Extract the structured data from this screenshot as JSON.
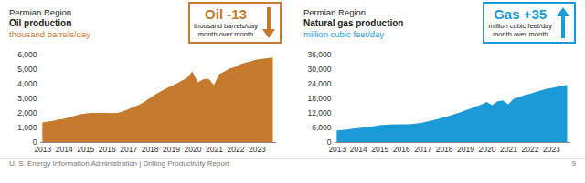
{
  "chart_data": [
    {
      "type": "area",
      "region": "Permian Region",
      "title": "Oil production",
      "y_label": "thousand barrels/day",
      "color": "#c57a2e",
      "x": [
        2013,
        2013.25,
        2013.5,
        2013.75,
        2014,
        2014.25,
        2014.5,
        2014.75,
        2015,
        2015.25,
        2015.5,
        2015.75,
        2016,
        2016.25,
        2016.5,
        2016.75,
        2017,
        2017.25,
        2017.5,
        2017.75,
        2018,
        2018.25,
        2018.5,
        2018.75,
        2019,
        2019.25,
        2019.5,
        2019.75,
        2020,
        2020.25,
        2020.5,
        2020.75,
        2021,
        2021.25,
        2021.5,
        2021.75,
        2022,
        2022.25,
        2022.5,
        2022.75,
        2023,
        2023.25,
        2023.5,
        2023.75
      ],
      "values": [
        1350,
        1400,
        1450,
        1550,
        1600,
        1700,
        1800,
        1900,
        1950,
        2000,
        2000,
        2000,
        2000,
        1980,
        2000,
        2100,
        2250,
        2400,
        2550,
        2750,
        3000,
        3250,
        3450,
        3650,
        3850,
        4000,
        4200,
        4400,
        4850,
        4100,
        4300,
        4350,
        3900,
        4650,
        4850,
        5050,
        5150,
        5350,
        5450,
        5550,
        5650,
        5700,
        5750,
        5800
      ],
      "xlim": [
        2012.9,
        2023.9
      ],
      "xticks": [
        2013,
        2014,
        2015,
        2016,
        2017,
        2018,
        2019,
        2020,
        2021,
        2022,
        2023
      ],
      "ylim": [
        0,
        6000
      ],
      "yticks": [
        0,
        {
          "value": 1000,
          "label": "1,000"
        },
        {
          "value": 2000,
          "label": "2,000"
        },
        {
          "value": 3000,
          "label": "3,000"
        },
        {
          "value": 4000,
          "label": "4,000"
        },
        {
          "value": 5000,
          "label": "5,000"
        },
        {
          "value": 6000,
          "label": "6,000"
        }
      ],
      "annotation": {
        "label": "Oil",
        "value": -13,
        "value_label": "-13",
        "text": [
          "thousand barrels/day",
          "month over month"
        ]
      }
    },
    {
      "type": "area",
      "region": "Permian Region",
      "title": "Natural gas production",
      "y_label": "million cubic feet/day",
      "color": "#1a9ad6",
      "x": [
        2013,
        2013.25,
        2013.5,
        2013.75,
        2014,
        2014.25,
        2014.5,
        2014.75,
        2015,
        2015.25,
        2015.5,
        2015.75,
        2016,
        2016.25,
        2016.5,
        2016.75,
        2017,
        2017.25,
        2017.5,
        2017.75,
        2018,
        2018.25,
        2018.5,
        2018.75,
        2019,
        2019.25,
        2019.5,
        2019.75,
        2020,
        2020.25,
        2020.5,
        2020.75,
        2021,
        2021.25,
        2021.5,
        2021.75,
        2022,
        2022.25,
        2022.5,
        2022.75,
        2023,
        2023.25,
        2023.5,
        2023.75
      ],
      "values": [
        4800,
        5000,
        5200,
        5500,
        5700,
        6000,
        6300,
        6600,
        6900,
        7100,
        7200,
        7300,
        7300,
        7300,
        7400,
        7700,
        8000,
        8500,
        9000,
        9600,
        10200,
        10800,
        11500,
        12200,
        13000,
        13800,
        14600,
        15500,
        16500,
        15200,
        16800,
        17200,
        15500,
        17800,
        18500,
        19300,
        19800,
        20500,
        21200,
        21800,
        22200,
        22700,
        23200,
        23500
      ],
      "xlim": [
        2012.9,
        2023.9
      ],
      "xticks": [
        2013,
        2014,
        2015,
        2016,
        2017,
        2018,
        2019,
        2020,
        2021,
        2022,
        2023
      ],
      "ylim": [
        0,
        36000
      ],
      "yticks": [
        0,
        {
          "value": 6000,
          "label": "6,000"
        },
        {
          "value": 12000,
          "label": "12,000"
        },
        {
          "value": 18000,
          "label": "18,000"
        },
        {
          "value": 24000,
          "label": "24,000"
        },
        {
          "value": 30000,
          "label": "30,000"
        },
        {
          "value": 36000,
          "label": "36,000"
        }
      ],
      "annotation": {
        "label": "Gas",
        "value": 35,
        "value_label": "+35",
        "text": [
          "million cubic feet/day",
          "month over month"
        ]
      }
    }
  ],
  "footer": {
    "source": "U. S. Energy Information Administration | Drilling Productivity Report",
    "page": 9
  }
}
